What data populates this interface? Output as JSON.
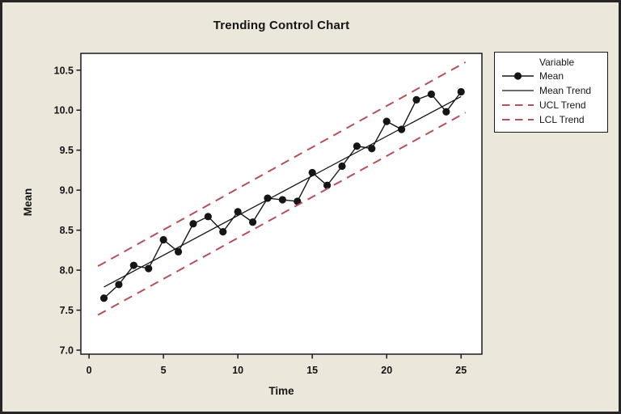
{
  "window": {
    "background": "#ece7db",
    "plot_background": "#ffffff",
    "frame_color": "#252525"
  },
  "chart_data": {
    "type": "line",
    "title": "Trending Control Chart",
    "xlabel": "Time",
    "ylabel": "Mean",
    "xlim": [
      -0.55,
      26.4
    ],
    "ylim": [
      6.95,
      10.71
    ],
    "x_ticks": [
      0,
      5,
      10,
      15,
      20,
      25
    ],
    "x_tick_labels": [
      "0",
      "5",
      "10",
      "15",
      "20",
      "25"
    ],
    "y_ticks": [
      7.0,
      7.5,
      8.0,
      8.5,
      9.0,
      9.5,
      10.0,
      10.5
    ],
    "y_tick_labels": [
      "7.0",
      "7.5",
      "8.0",
      "8.5",
      "9.0",
      "9.5",
      "10.0",
      "10.5"
    ],
    "grid": false,
    "legend_position": "outside-right",
    "series": [
      {
        "name": "Mean",
        "kind": "line-marker",
        "color": "#151515",
        "x": [
          1,
          2,
          3,
          4,
          5,
          6,
          7,
          8,
          9,
          10,
          11,
          12,
          13,
          14,
          15,
          16,
          17,
          18,
          19,
          20,
          21,
          22,
          23,
          24,
          25
        ],
        "values": [
          7.65,
          7.82,
          8.06,
          8.02,
          8.38,
          8.23,
          8.58,
          8.67,
          8.48,
          8.73,
          8.6,
          8.9,
          8.88,
          8.86,
          9.22,
          9.06,
          9.3,
          9.55,
          9.52,
          9.86,
          9.76,
          10.13,
          10.2,
          9.98,
          10.23
        ]
      },
      {
        "name": "Mean Trend",
        "kind": "line",
        "color": "#151515",
        "x": [
          1,
          25
        ],
        "values": [
          7.79,
          10.17
        ]
      },
      {
        "name": "UCL Trend",
        "kind": "dashed",
        "color": "#b5505a",
        "x": [
          0.6,
          25.3
        ],
        "values": [
          8.05,
          10.6
        ]
      },
      {
        "name": "LCL Trend",
        "kind": "dashed",
        "color": "#b5505a",
        "x": [
          0.6,
          25.3
        ],
        "values": [
          7.44,
          9.97
        ]
      }
    ],
    "legend": {
      "title": "Variable",
      "entries": [
        {
          "label": "Mean",
          "swatch": "line-marker",
          "color": "#151515"
        },
        {
          "label": "Mean Trend",
          "swatch": "line",
          "color": "#151515"
        },
        {
          "label": "UCL Trend",
          "swatch": "dashed",
          "color": "#b5505a"
        },
        {
          "label": "LCL Trend",
          "swatch": "dashed",
          "color": "#b5505a"
        }
      ]
    }
  }
}
